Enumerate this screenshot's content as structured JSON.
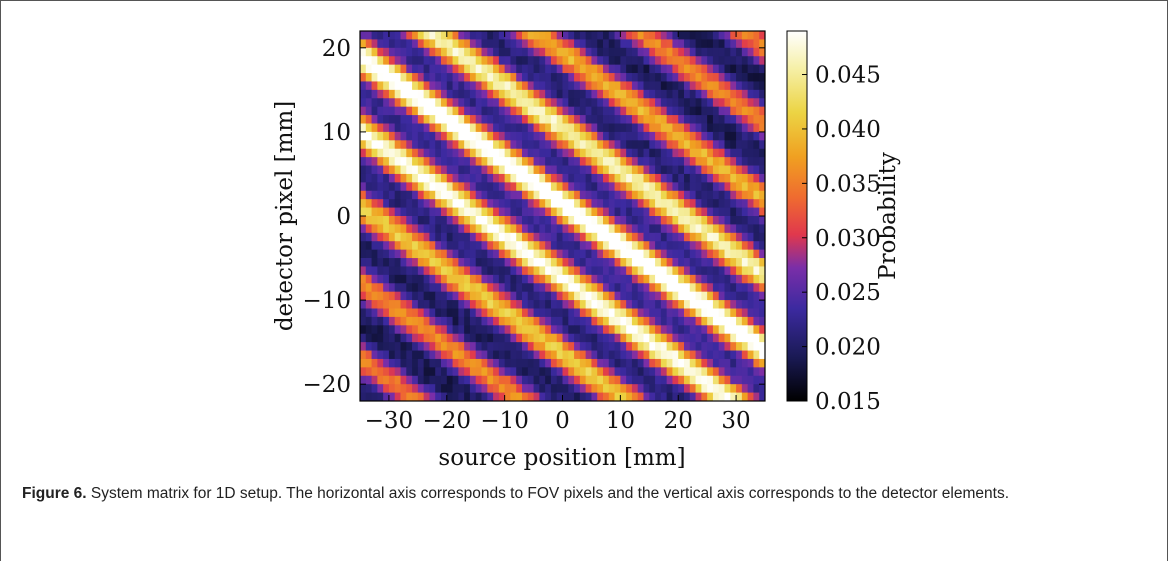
{
  "figure": {
    "caption_label": "Figure 6.",
    "caption_text": " System matrix for 1D setup. The horizontal axis corresponds to FOV pixels and the vertical axis corresponds to the detector elements."
  },
  "chart_data": {
    "type": "heatmap",
    "xlabel": "source position [mm]",
    "ylabel": "detector pixel [mm]",
    "colorbar_label": "Probability",
    "xlim": [
      -35,
      35
    ],
    "ylim": [
      -22,
      22
    ],
    "clim": [
      0.015,
      0.049
    ],
    "colormap": "CMRmap-like (black → blue/purple → red → orange → yellow → white)",
    "x_ticks": [
      -30,
      -20,
      -10,
      0,
      10,
      20,
      30
    ],
    "y_ticks": [
      -20,
      -10,
      0,
      10,
      20
    ],
    "x_tick_labels": [
      "−30",
      "−20",
      "−10",
      "0",
      "10",
      "20",
      "30"
    ],
    "y_tick_labels": [
      "−20",
      "−10",
      "0",
      "10",
      "20"
    ],
    "colorbar_ticks": [
      0.015,
      0.02,
      0.025,
      0.03,
      0.035,
      0.04,
      0.045
    ],
    "colorbar_tick_labels": [
      "0.015",
      "0.020",
      "0.025",
      "0.030",
      "0.035",
      "0.040",
      "0.045"
    ],
    "grid": false,
    "pattern": "diagonal stripes of high probability with slope ≈ −0.5 mm/mm and period ≈ 9 mm along detector axis; central band (through origin) is brightest, values decay away from center"
  },
  "colors": {
    "colormap_stops": [
      "#000000",
      "#1a1a55",
      "#3c2aa0",
      "#7a2ea8",
      "#e0384d",
      "#ef6b30",
      "#f0a021",
      "#ecd444",
      "#f6f0a8",
      "#ffffff"
    ]
  }
}
